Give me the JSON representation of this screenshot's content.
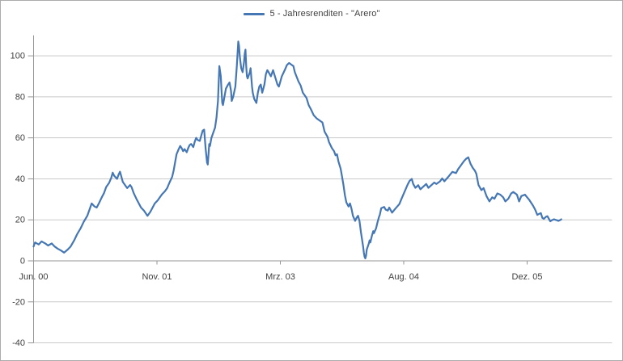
{
  "legend": {
    "label": "5 - Jahresrenditen - \"Arero\""
  },
  "colors": {
    "series": "#4577b4",
    "gridline": "#c9c9c9",
    "axis": "#969696",
    "text": "#404040",
    "frame_border": "#ababab",
    "background": "#ffffff"
  },
  "chart_data": {
    "type": "line",
    "title": "",
    "legend_position": "top",
    "grid": true,
    "x_axis": {
      "unit": "months since Jun 2000",
      "tick_labels": [
        "Jun. 00",
        "Nov. 01",
        "Mrz. 03",
        "Aug. 04",
        "Dez. 05"
      ],
      "tick_positions_months": [
        0,
        17,
        34,
        51,
        68
      ],
      "range_months": [
        0,
        79.7
      ]
    },
    "y_axis": {
      "unit": "percent (5-year rolling return)",
      "tick_labels": [
        "-40",
        "-20",
        "0",
        "20",
        "40",
        "60",
        "80",
        "100"
      ],
      "tick_values": [
        -40,
        -20,
        0,
        20,
        40,
        60,
        80,
        100
      ],
      "range": [
        -40,
        110
      ],
      "axis_cross_value": 0
    },
    "series": [
      {
        "name": "5 - Jahresrenditen - \"Arero\"",
        "color": "#4577b4",
        "points": [
          [
            0,
            7
          ],
          [
            0.2,
            9
          ],
          [
            0.7,
            8
          ],
          [
            1.1,
            9.5
          ],
          [
            1.6,
            8.5
          ],
          [
            2,
            7.5
          ],
          [
            2.5,
            8.5
          ],
          [
            2.9,
            7
          ],
          [
            3.3,
            6
          ],
          [
            3.8,
            5
          ],
          [
            4.2,
            4
          ],
          [
            4.7,
            5.5
          ],
          [
            5.1,
            7
          ],
          [
            5.6,
            10
          ],
          [
            6,
            13
          ],
          [
            6.5,
            16
          ],
          [
            6.9,
            19
          ],
          [
            7.4,
            22
          ],
          [
            7.8,
            26
          ],
          [
            8,
            28
          ],
          [
            8.4,
            26.5
          ],
          [
            8.7,
            26
          ],
          [
            9,
            28
          ],
          [
            9.4,
            31
          ],
          [
            9.7,
            33
          ],
          [
            10,
            36
          ],
          [
            10.4,
            38
          ],
          [
            10.7,
            40.5
          ],
          [
            10.9,
            43
          ],
          [
            11.1,
            41.5
          ],
          [
            11.5,
            40
          ],
          [
            11.7,
            42
          ],
          [
            11.9,
            43.5
          ],
          [
            12.3,
            38.5
          ],
          [
            12.6,
            37
          ],
          [
            12.9,
            35.5
          ],
          [
            13.3,
            37
          ],
          [
            13.5,
            36
          ],
          [
            13.8,
            33
          ],
          [
            14.2,
            30
          ],
          [
            14.5,
            28
          ],
          [
            14.8,
            26
          ],
          [
            15.2,
            24.5
          ],
          [
            15.5,
            23
          ],
          [
            15.7,
            22
          ],
          [
            16.1,
            24
          ],
          [
            16.4,
            26
          ],
          [
            16.7,
            28
          ],
          [
            17.1,
            29.5
          ],
          [
            17.4,
            31
          ],
          [
            17.7,
            32.5
          ],
          [
            18.1,
            34
          ],
          [
            18.4,
            35.5
          ],
          [
            18.7,
            38
          ],
          [
            19.1,
            41
          ],
          [
            19.3,
            44
          ],
          [
            19.5,
            48
          ],
          [
            19.7,
            52
          ],
          [
            20,
            54.5
          ],
          [
            20.2,
            56
          ],
          [
            20.4,
            55
          ],
          [
            20.6,
            53.5
          ],
          [
            20.8,
            54.5
          ],
          [
            21.1,
            53
          ],
          [
            21.3,
            55
          ],
          [
            21.5,
            56.5
          ],
          [
            21.7,
            57
          ],
          [
            22,
            55.5
          ],
          [
            22.2,
            58
          ],
          [
            22.4,
            60
          ],
          [
            22.6,
            59
          ],
          [
            22.9,
            58.5
          ],
          [
            23.1,
            61
          ],
          [
            23.3,
            63.5
          ],
          [
            23.5,
            64
          ],
          [
            23.7,
            55
          ],
          [
            23.9,
            48
          ],
          [
            24,
            47
          ],
          [
            24.1,
            52
          ],
          [
            24.2,
            57
          ],
          [
            24.3,
            56
          ],
          [
            24.5,
            60
          ],
          [
            24.7,
            62
          ],
          [
            25,
            65
          ],
          [
            25.2,
            70
          ],
          [
            25.4,
            78
          ],
          [
            25.5,
            87
          ],
          [
            25.6,
            95
          ],
          [
            25.8,
            90
          ],
          [
            25.9,
            83
          ],
          [
            26,
            77
          ],
          [
            26.1,
            76
          ],
          [
            26.3,
            80
          ],
          [
            26.5,
            84
          ],
          [
            26.8,
            86
          ],
          [
            27,
            87
          ],
          [
            27.2,
            83
          ],
          [
            27.3,
            78
          ],
          [
            27.5,
            80
          ],
          [
            27.8,
            85
          ],
          [
            28,
            95
          ],
          [
            28.1,
            101
          ],
          [
            28.2,
            107
          ],
          [
            28.3,
            105
          ],
          [
            28.4,
            100
          ],
          [
            28.5,
            97
          ],
          [
            28.6,
            94
          ],
          [
            28.8,
            92
          ],
          [
            29,
            97
          ],
          [
            29.1,
            101
          ],
          [
            29.2,
            103
          ],
          [
            29.3,
            95
          ],
          [
            29.4,
            90
          ],
          [
            29.5,
            89
          ],
          [
            29.8,
            92
          ],
          [
            29.9,
            94
          ],
          [
            30.1,
            85
          ],
          [
            30.2,
            82
          ],
          [
            30.4,
            79
          ],
          [
            30.7,
            77
          ],
          [
            30.9,
            82
          ],
          [
            31.1,
            85
          ],
          [
            31.3,
            86
          ],
          [
            31.5,
            82
          ],
          [
            31.8,
            86
          ],
          [
            32,
            91
          ],
          [
            32.2,
            93
          ],
          [
            32.3,
            92.5
          ],
          [
            32.7,
            90
          ],
          [
            33,
            93
          ],
          [
            33.3,
            89.5
          ],
          [
            33.6,
            86
          ],
          [
            33.8,
            85
          ],
          [
            34,
            87.5
          ],
          [
            34.2,
            90
          ],
          [
            34.6,
            93
          ],
          [
            34.9,
            95.5
          ],
          [
            35.2,
            96.5
          ],
          [
            35.6,
            95.5
          ],
          [
            35.8,
            95
          ],
          [
            36,
            92
          ],
          [
            36.5,
            87.5
          ],
          [
            36.8,
            85.5
          ],
          [
            37.1,
            82
          ],
          [
            37.6,
            79.5
          ],
          [
            37.9,
            76
          ],
          [
            38.2,
            74
          ],
          [
            38.6,
            71
          ],
          [
            39,
            69.5
          ],
          [
            39.4,
            68.5
          ],
          [
            39.8,
            67.5
          ],
          [
            40.1,
            63
          ],
          [
            40.5,
            60.5
          ],
          [
            40.7,
            58
          ],
          [
            40.9,
            56.5
          ],
          [
            41.1,
            55
          ],
          [
            41.4,
            53.5
          ],
          [
            41.6,
            51.5
          ],
          [
            41.8,
            52
          ],
          [
            42,
            48.5
          ],
          [
            42.3,
            45
          ],
          [
            42.5,
            41
          ],
          [
            42.7,
            37
          ],
          [
            42.9,
            32
          ],
          [
            43.1,
            28.5
          ],
          [
            43.4,
            26.5
          ],
          [
            43.6,
            28
          ],
          [
            43.8,
            25.5
          ],
          [
            44,
            22
          ],
          [
            44.3,
            19.5
          ],
          [
            44.5,
            21
          ],
          [
            44.7,
            22
          ],
          [
            44.9,
            19.5
          ],
          [
            45.1,
            14
          ],
          [
            45.4,
            7
          ],
          [
            45.5,
            4
          ],
          [
            45.6,
            2
          ],
          [
            45.7,
            1.2
          ],
          [
            45.8,
            2.5
          ],
          [
            45.9,
            5.5
          ],
          [
            46.2,
            8.5
          ],
          [
            46.3,
            10
          ],
          [
            46.4,
            9
          ],
          [
            46.6,
            12
          ],
          [
            46.8,
            14.5
          ],
          [
            46.9,
            13.5
          ],
          [
            47.2,
            16
          ],
          [
            47.4,
            19
          ],
          [
            47.6,
            21.5
          ],
          [
            47.7,
            22.4
          ],
          [
            47.9,
            25.7
          ],
          [
            48.3,
            26.3
          ],
          [
            48.5,
            25
          ],
          [
            48.8,
            24.5
          ],
          [
            49,
            26
          ],
          [
            49.4,
            23.5
          ],
          [
            49.6,
            24.4
          ],
          [
            49.9,
            25.7
          ],
          [
            50.4,
            27.7
          ],
          [
            50.7,
            30.3
          ],
          [
            51.1,
            33.6
          ],
          [
            51.5,
            36.9
          ],
          [
            51.8,
            39
          ],
          [
            52.1,
            40
          ],
          [
            52.3,
            37.5
          ],
          [
            52.6,
            35.6
          ],
          [
            53,
            36.9
          ],
          [
            53.3,
            34.9
          ],
          [
            53.7,
            36.2
          ],
          [
            54.1,
            37.5
          ],
          [
            54.4,
            35.6
          ],
          [
            54.8,
            36.9
          ],
          [
            55.2,
            38.2
          ],
          [
            55.5,
            37.5
          ],
          [
            56,
            38.8
          ],
          [
            56.3,
            40.2
          ],
          [
            56.6,
            38.8
          ],
          [
            57.1,
            40.8
          ],
          [
            57.4,
            42.1
          ],
          [
            57.7,
            43.4
          ],
          [
            58.2,
            42.8
          ],
          [
            58.5,
            44.8
          ],
          [
            58.9,
            46.7
          ],
          [
            59.3,
            48.7
          ],
          [
            59.6,
            49.8
          ],
          [
            59.9,
            50.5
          ],
          [
            60.2,
            47.4
          ],
          [
            60.5,
            45.4
          ],
          [
            60.8,
            44
          ],
          [
            61,
            42.5
          ],
          [
            61.3,
            37
          ],
          [
            61.7,
            34.5
          ],
          [
            62,
            35.5
          ],
          [
            62.4,
            31.6
          ],
          [
            62.8,
            29
          ],
          [
            63.2,
            31
          ],
          [
            63.5,
            30.3
          ],
          [
            63.9,
            32.9
          ],
          [
            64.3,
            32.3
          ],
          [
            64.7,
            31
          ],
          [
            65,
            29
          ],
          [
            65.4,
            30.3
          ],
          [
            65.8,
            32.9
          ],
          [
            66.1,
            33.6
          ],
          [
            66.6,
            32.3
          ],
          [
            66.9,
            29
          ],
          [
            67.2,
            31.6
          ],
          [
            67.7,
            32.3
          ],
          [
            68,
            31
          ],
          [
            68.3,
            29.7
          ],
          [
            68.8,
            27
          ],
          [
            69.1,
            25
          ],
          [
            69.4,
            22.4
          ],
          [
            69.7,
            23
          ],
          [
            69.9,
            23.3
          ],
          [
            70.1,
            21
          ],
          [
            70.3,
            20.5
          ],
          [
            70.6,
            21.5
          ],
          [
            70.8,
            21.8
          ],
          [
            71,
            20.5
          ],
          [
            71.2,
            19.3
          ],
          [
            71.4,
            19.8
          ],
          [
            71.7,
            20.3
          ],
          [
            71.9,
            20
          ],
          [
            72.1,
            19.8
          ],
          [
            72.3,
            19.5
          ],
          [
            72.6,
            20
          ],
          [
            72.7,
            20.3
          ]
        ]
      }
    ]
  }
}
